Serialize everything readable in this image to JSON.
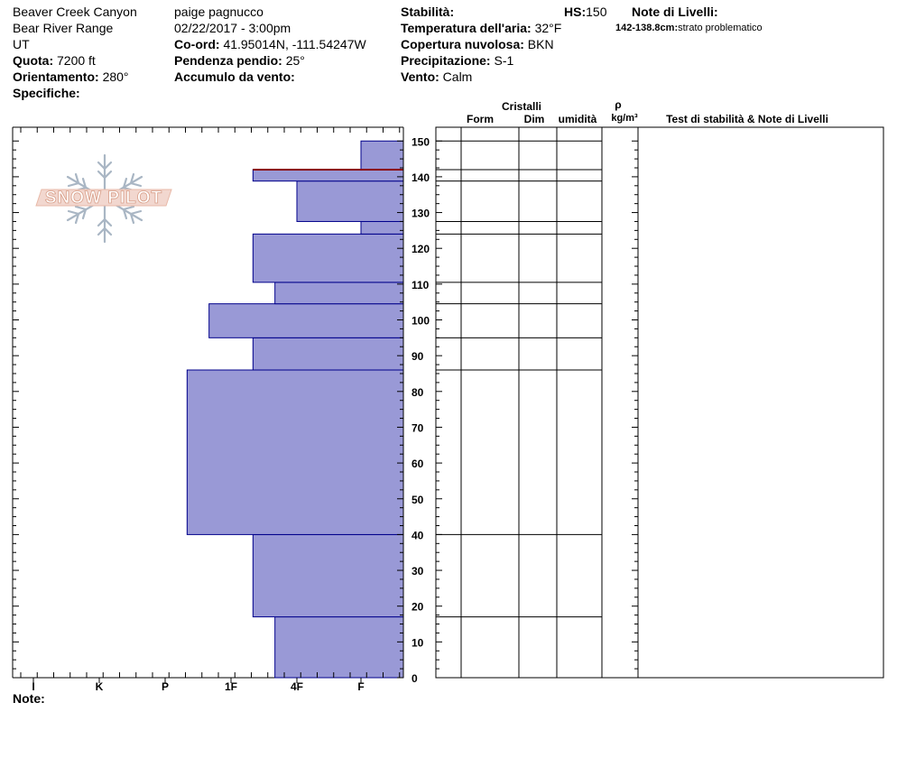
{
  "header": {
    "location": "Beaver Creek Canyon",
    "range": "Bear River Range",
    "state": "UT",
    "elevation_label": "Quota:",
    "elevation": "7200 ft",
    "aspect_label": "Orientamento:",
    "aspect": "280°",
    "specifics_label": "Specifiche:",
    "observer": "paige pagnucco",
    "datetime": "02/22/2017 - 3:00pm",
    "coords_label": "Co-ord:",
    "coords": "41.95014N, -111.54247W",
    "slope_label": "Pendenza pendio:",
    "slope": "25°",
    "wind_loading_label": "Accumulo da vento:",
    "stability_label": "Stabilità:",
    "air_temp_label": "Temperatura dell'aria:",
    "air_temp": "32°F",
    "sky_label": "Copertura nuvolosa:",
    "sky": "BKN",
    "precip_label": "Precipitazione:",
    "precip": "S-1",
    "wind_label": "Vento:",
    "wind": "Calm",
    "hs_label": "HS:",
    "hs": "150",
    "layer_notes_label": "Note di Livelli:",
    "layer_note_range": "142-138.8cm:",
    "layer_note_text": "strato problematico",
    "notes_label": "Note:"
  },
  "columns": {
    "crystals": "Cristalli",
    "form": "Form",
    "size": "Dim",
    "moisture": "umidità",
    "density_symbol": "ρ",
    "density_unit": "kg/m³",
    "stability_notes": "Test di stabilità & Note di Livelli"
  },
  "logo_text": "SNOW PILOT",
  "colors": {
    "layer_fill": "#9999d6",
    "layer_stroke": "#00008b",
    "problem_layer": "#8b0000"
  },
  "chart_data": {
    "type": "bar",
    "orientation": "horizontal",
    "x_axis_categories": [
      "I",
      "K",
      "P",
      "1F",
      "4F",
      "F"
    ],
    "y_axis": {
      "unit": "cm",
      "range": [
        0,
        150
      ],
      "ticks": [
        0,
        10,
        20,
        30,
        40,
        50,
        60,
        70,
        80,
        90,
        100,
        110,
        120,
        130,
        140,
        150
      ]
    },
    "layers": [
      {
        "bottom": 0,
        "top": 17,
        "hardness": "4F+"
      },
      {
        "bottom": 17,
        "top": 40,
        "hardness": "1F-"
      },
      {
        "bottom": 40,
        "top": 86,
        "hardness": "P-"
      },
      {
        "bottom": 86,
        "top": 95,
        "hardness": "1F-"
      },
      {
        "bottom": 95,
        "top": 104.5,
        "hardness": "1F+"
      },
      {
        "bottom": 104.5,
        "top": 110.5,
        "hardness": "4F+"
      },
      {
        "bottom": 110.5,
        "top": 124,
        "hardness": "1F-"
      },
      {
        "bottom": 124,
        "top": 127.5,
        "hardness": "F"
      },
      {
        "bottom": 127.5,
        "top": 138.8,
        "hardness": "4F"
      },
      {
        "bottom": 138.8,
        "top": 142,
        "hardness": "1F-"
      },
      {
        "bottom": 142,
        "top": 150,
        "hardness": "F"
      }
    ],
    "problem_layer": {
      "top": 142,
      "bottom": 138.8
    },
    "layer_boundaries": [
      17,
      40,
      86,
      95,
      104.5,
      110.5,
      124,
      127.5,
      138.8,
      142,
      150
    ]
  }
}
